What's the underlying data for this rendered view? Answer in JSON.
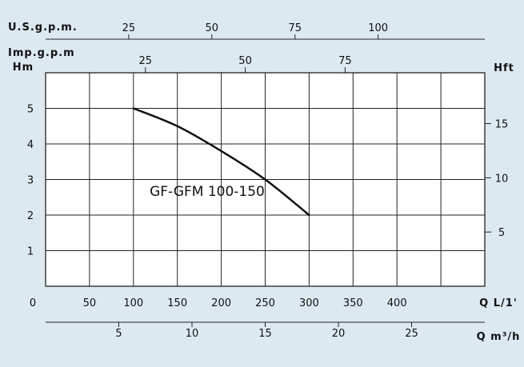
{
  "chart_data": {
    "type": "line",
    "title": "",
    "series": [
      {
        "name": "GF-GFM 100-150",
        "x": [
          100,
          150,
          200,
          250,
          300
        ],
        "y": [
          5.0,
          4.5,
          3.8,
          3.0,
          2.0
        ]
      }
    ],
    "x_axis": {
      "label": "Q L/1'",
      "range": [
        0,
        450
      ],
      "ticks": [
        "0",
        "50",
        "100",
        "150",
        "200",
        "250",
        "300",
        "350",
        "400"
      ]
    },
    "y_axis": {
      "label": "Hm",
      "range": [
        0,
        6
      ],
      "ticks": [
        "1",
        "2",
        "3",
        "4",
        "5"
      ]
    },
    "y2_axis": {
      "label": "Hft",
      "ticks": [
        {
          "label": "5",
          "value": 5
        },
        {
          "label": "10",
          "value": 10
        },
        {
          "label": "15",
          "value": 15
        }
      ]
    },
    "top_axes": [
      {
        "label": "U.S.g.p.m.",
        "ticks": [
          {
            "label": "25",
            "value": 25
          },
          {
            "label": "50",
            "value": 50
          },
          {
            "label": "75",
            "value": 75
          },
          {
            "label": "100",
            "value": 100
          }
        ]
      },
      {
        "label": "Imp.g.p.m",
        "ticks": [
          {
            "label": "25",
            "value": 25
          },
          {
            "label": "50",
            "value": 50
          },
          {
            "label": "75",
            "value": 75
          }
        ]
      }
    ],
    "bottom_axis2": {
      "label": "Q m³/h",
      "ticks": [
        {
          "label": "5",
          "value": 5
        },
        {
          "label": "10",
          "value": 10
        },
        {
          "label": "15",
          "value": 15
        },
        {
          "label": "20",
          "value": 20
        },
        {
          "label": "25",
          "value": 25
        }
      ]
    },
    "grid": true,
    "colors": {
      "background": "#dde9f1",
      "plot": "#ffffff",
      "line": "#111111"
    }
  }
}
